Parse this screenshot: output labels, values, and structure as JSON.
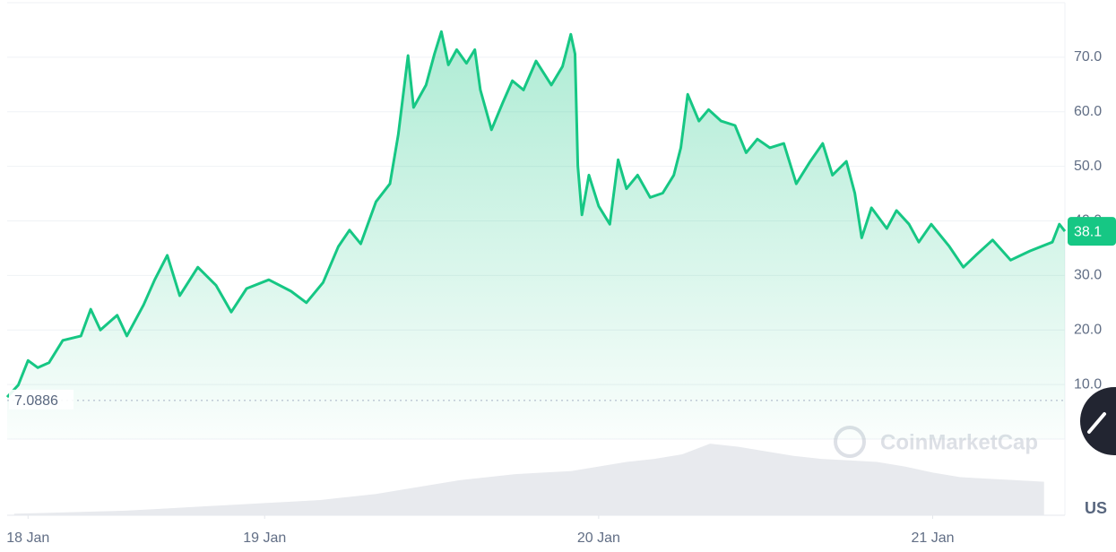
{
  "chart_data": {
    "type": "line",
    "color": "#16c784",
    "x": [
      5.5,
      6.3,
      7.0,
      7.7,
      8.5,
      9.5,
      10.8,
      11.5,
      12.2,
      13.4,
      14.1,
      15.3,
      16.1,
      17.0,
      17.9,
      19.2,
      20.5,
      21.6,
      22.7,
      24.3,
      25.9,
      27.0,
      28.2,
      29.3,
      30.1,
      30.9,
      32.0,
      33.0,
      33.6,
      34.3,
      34.7,
      35.6,
      36.2,
      36.7,
      37.2,
      37.8,
      38.5,
      39.1,
      39.5,
      40.3,
      41.1,
      41.8,
      42.6,
      43.5,
      44.6,
      45.4,
      46.0,
      46.3,
      46.5,
      46.8,
      47.3,
      48.0,
      48.8,
      49.4,
      50.0,
      50.8,
      51.7,
      52.6,
      53.4,
      53.9,
      54.4,
      55.2,
      55.9,
      56.8,
      57.8,
      58.6,
      59.4,
      60.3,
      61.3,
      62.2,
      63.2,
      64.1,
      64.8,
      65.8,
      66.4,
      66.9,
      67.6,
      68.7,
      69.4,
      70.3,
      71.0,
      71.9,
      73.2,
      74.2,
      75.1,
      76.3,
      77.6,
      79.0,
      80.6,
      81.1,
      81.5
    ],
    "values": [
      7.7,
      9.9,
      14.4,
      13.1,
      14.0,
      18.1,
      18.9,
      23.8,
      20.0,
      22.7,
      18.9,
      24.6,
      29.2,
      33.7,
      26.3,
      31.5,
      28.2,
      23.3,
      27.6,
      29.2,
      27.1,
      25.0,
      28.7,
      35.3,
      38.3,
      35.8,
      43.5,
      46.8,
      55.8,
      70.3,
      60.8,
      64.9,
      70.6,
      74.7,
      68.6,
      71.4,
      68.9,
      71.4,
      64.0,
      56.7,
      61.6,
      65.7,
      64.0,
      69.3,
      64.9,
      68.3,
      74.2,
      70.6,
      50.1,
      41.1,
      48.4,
      42.7,
      39.4,
      51.2,
      45.9,
      48.4,
      44.3,
      45.1,
      48.4,
      53.4,
      63.2,
      58.3,
      60.4,
      58.3,
      57.5,
      52.5,
      55.0,
      53.4,
      54.2,
      46.8,
      50.9,
      54.2,
      48.4,
      50.9,
      45.1,
      36.9,
      42.4,
      38.6,
      41.9,
      39.4,
      36.1,
      39.4,
      35.3,
      31.5,
      33.7,
      36.5,
      32.8,
      34.5,
      36.1,
      39.4,
      38.1
    ],
    "xlim": [
      5.5,
      81.5
    ],
    "xticks": [
      {
        "value": 7,
        "label": "18 Jan"
      },
      {
        "value": 24,
        "label": "19 Jan"
      },
      {
        "value": 48,
        "label": "20 Jan"
      },
      {
        "value": 72,
        "label": "21 Jan"
      }
    ],
    "ylim": [
      0,
      80
    ],
    "yticks": [
      {
        "value": 10,
        "label": "10.0"
      },
      {
        "value": 20,
        "label": "20.0"
      },
      {
        "value": 30,
        "label": "30.0"
      },
      {
        "value": 40,
        "label": "40.0"
      },
      {
        "value": 50,
        "label": "50.0"
      },
      {
        "value": 60,
        "label": "60.0"
      },
      {
        "value": 70,
        "label": "70.0"
      }
    ],
    "grid": true,
    "reference": 7.0886,
    "current_price": 38.1,
    "volume": {
      "color": "#e8eaee",
      "x": [
        6,
        8,
        10,
        12,
        14,
        16,
        18,
        20,
        22,
        24,
        26,
        28,
        30,
        32,
        34,
        36,
        38,
        40,
        42,
        44,
        46,
        48,
        50,
        52,
        54,
        56,
        58,
        60,
        62,
        64,
        66,
        68,
        70,
        72,
        74,
        76,
        78,
        80
      ],
      "values": [
        2,
        3,
        4,
        5,
        6,
        8,
        10,
        12,
        14,
        16,
        18,
        20,
        24,
        28,
        34,
        40,
        46,
        50,
        54,
        56,
        58,
        64,
        70,
        74,
        80,
        94,
        90,
        84,
        78,
        74,
        72,
        70,
        64,
        56,
        50,
        48,
        46,
        44
      ],
      "vlim": [
        0,
        100
      ]
    },
    "watermark": "CoinMarketCap",
    "currency": "US"
  }
}
